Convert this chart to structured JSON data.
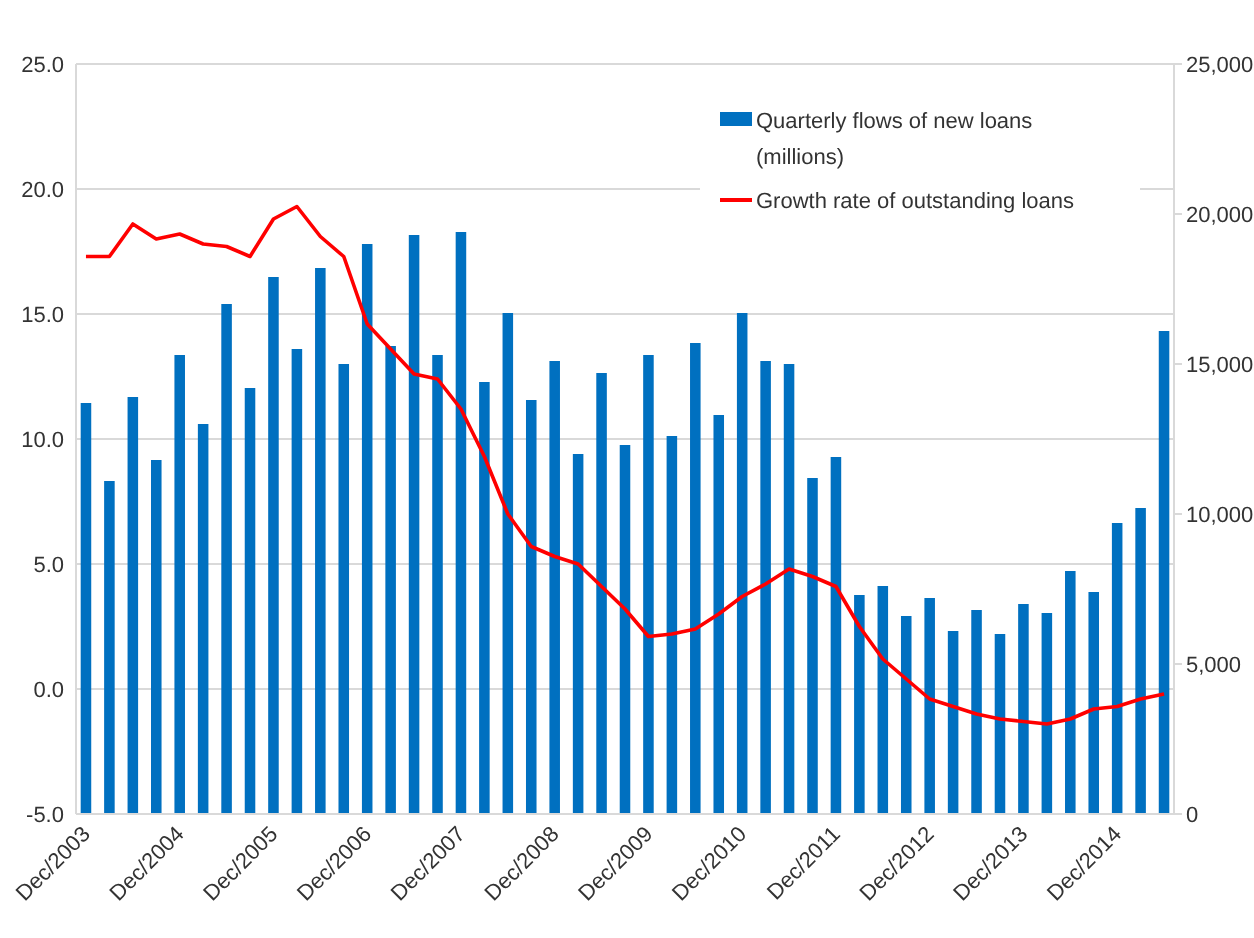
{
  "chart_data": {
    "type": "bar",
    "categories": [
      "Dec/2003",
      null,
      null,
      null,
      "Dec/2004",
      null,
      null,
      null,
      "Dec/2005",
      null,
      null,
      null,
      "Dec/2006",
      null,
      null,
      null,
      "Dec/2007",
      null,
      null,
      null,
      "Dec/2008",
      null,
      null,
      null,
      "Dec/2009",
      null,
      null,
      null,
      "Dec/2010",
      null,
      null,
      null,
      "Dec/2011",
      null,
      null,
      null,
      "Dec/2012",
      null,
      null,
      null,
      "Dec/2013",
      null,
      null,
      null,
      "Dec/2014",
      null,
      null
    ],
    "series": [
      {
        "name": "Quarterly flows of new loans (millions)",
        "axis": "y2",
        "color": "#0070c0",
        "values": [
          13700,
          11100,
          13900,
          11800,
          15300,
          13000,
          17000,
          14200,
          17900,
          15500,
          18200,
          15000,
          19000,
          15600,
          19300,
          15300,
          19400,
          14400,
          16700,
          13800,
          15100,
          12000,
          14700,
          12300,
          15300,
          12600,
          15700,
          13300,
          16700,
          15100,
          15000,
          11200,
          11900,
          7300,
          7600,
          6600,
          7200,
          6100,
          6800,
          6000,
          7000,
          6700,
          8100,
          7400,
          9700,
          10200,
          16100
        ]
      },
      {
        "name": "Growth rate of outstanding loans",
        "type": "line",
        "color": "#ff0000",
        "values": [
          17.3,
          17.3,
          18.6,
          18.0,
          18.2,
          17.8,
          17.7,
          17.3,
          18.8,
          19.3,
          18.1,
          17.3,
          14.6,
          13.6,
          12.6,
          12.4,
          11.2,
          9.3,
          7.0,
          5.7,
          5.3,
          5.0,
          4.1,
          3.2,
          2.1,
          2.2,
          2.4,
          3.0,
          3.7,
          4.2,
          4.8,
          4.5,
          4.1,
          2.5,
          1.2,
          0.4,
          -0.4,
          -0.7,
          -1.0,
          -1.2,
          -1.3,
          -1.4,
          -1.2,
          -0.8,
          -0.7,
          -0.4,
          -0.2
        ]
      }
    ],
    "ylim": [
      -5,
      25
    ],
    "yticks": [
      {
        "value": -5,
        "label": "-5.0"
      },
      {
        "value": 0,
        "label": "0.0"
      },
      {
        "value": 5,
        "label": "5.0"
      },
      {
        "value": 10,
        "label": "10.0"
      },
      {
        "value": 15,
        "label": "15.0"
      },
      {
        "value": 20,
        "label": "20.0"
      },
      {
        "value": 25,
        "label": "25.0"
      }
    ],
    "y2lim": [
      0,
      25000
    ],
    "y2ticks": [
      0,
      {
        "value": 5000,
        "label": "5,000"
      },
      {
        "value": 10000,
        "label": "10,000"
      },
      {
        "value": 15000,
        "label": "15,000"
      },
      {
        "value": 20000,
        "label": "20,000"
      },
      {
        "value": 25000,
        "label": "25,000"
      }
    ],
    "grid": "y",
    "legend": "top right",
    "line_style": "solid"
  }
}
